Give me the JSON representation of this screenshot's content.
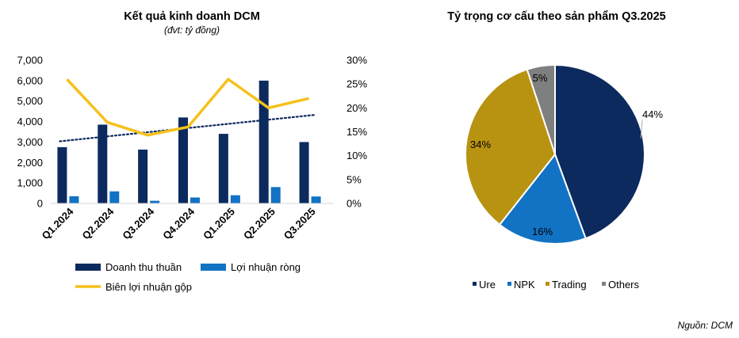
{
  "source": "Nguồn: DCM",
  "chart_data": [
    {
      "type": "bar",
      "title": "Kết quả kinh doanh DCM",
      "subtitle": "(đvt: tỷ đồng)",
      "categories": [
        "Q1.2024",
        "Q2.2024",
        "Q3.2024",
        "Q4.2024",
        "Q1.2025",
        "Q2.2025",
        "Q3.2025"
      ],
      "ylim": [
        0,
        7000
      ],
      "y_ticks": [
        "0",
        "1,000",
        "2,000",
        "3,000",
        "4,000",
        "5,000",
        "6,000",
        "7,000"
      ],
      "y2lim": [
        0,
        30
      ],
      "y2_ticks": [
        "0%",
        "5%",
        "10%",
        "15%",
        "20%",
        "25%",
        "30%"
      ],
      "series": [
        {
          "name": "Doanh thu thuần",
          "kind": "bar",
          "axis": "left",
          "color": "#0c2a5e",
          "values": [
            2750,
            3850,
            2630,
            4200,
            3400,
            6000,
            3000
          ]
        },
        {
          "name": "Lợi nhuận ròng",
          "kind": "bar",
          "axis": "left",
          "color": "#1272c4",
          "values": [
            350,
            590,
            130,
            290,
            400,
            800,
            340
          ]
        },
        {
          "name": "Biên lợi nhuận gộp",
          "kind": "line",
          "axis": "right",
          "color": "#f5c11b",
          "values": [
            26,
            17,
            14.3,
            16,
            26,
            20,
            22
          ]
        }
      ],
      "trendline": {
        "series": "Doanh thu thuần",
        "color": "#0c2a5e",
        "style": "dotted"
      },
      "legend": "bottom"
    },
    {
      "type": "pie",
      "title": "Tỷ trọng cơ cấu theo sản phẩm Q3.2025",
      "labels": [
        "Ure",
        "NPK",
        "Trading",
        "Others"
      ],
      "values": [
        44,
        16,
        34,
        5
      ],
      "value_labels": [
        "44%",
        "16%",
        "34%",
        "5%"
      ],
      "colors": [
        "#0c2a5e",
        "#1272c4",
        "#b89312",
        "#7f7f7f"
      ],
      "legend": "bottom"
    }
  ]
}
